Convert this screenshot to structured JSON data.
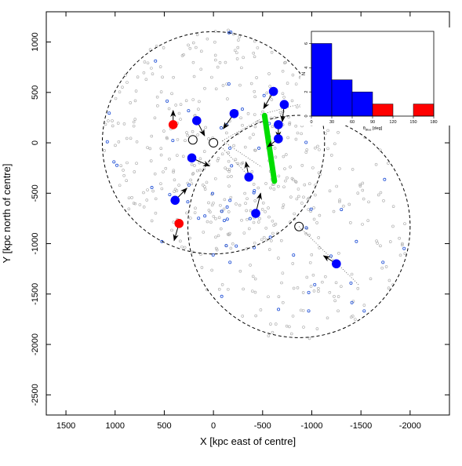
{
  "chart_data": [
    {
      "type": "scatter",
      "xlabel": "X [kpc east of centre]",
      "ylabel": "Y [kpc north of centre]",
      "xlim": [
        1700,
        -2400
      ],
      "ylim": [
        -2700,
        1300
      ],
      "xticks": [
        1500,
        1000,
        500,
        0,
        -500,
        -1000,
        -1500,
        -2000
      ],
      "yticks": [
        1000,
        500,
        0,
        -500,
        -1000,
        -1500,
        -2000,
        -2500
      ],
      "xtick_labels": [
        "1500",
        "1000",
        "500",
        "0",
        "-500",
        "-1000",
        "-1500",
        "-2000"
      ],
      "ytick_labels": [
        "1000",
        "500",
        "0",
        "-500",
        "-1000",
        "-1500",
        "-2000",
        "-2500"
      ],
      "grid": false,
      "circles": [
        {
          "cx": 0,
          "cy": 0,
          "r": 1130
        },
        {
          "cx": -870,
          "cy": -830,
          "r": 1130
        }
      ],
      "open_circles": [
        {
          "x": 0,
          "y": 0
        },
        {
          "x": 210,
          "y": 30
        },
        {
          "x": -870,
          "y": -830
        }
      ],
      "filled_points": [
        {
          "x": 410,
          "y": 180,
          "color": "#ff0000",
          "dx": 0,
          "dy": 140
        },
        {
          "x": 170,
          "y": 220,
          "color": "#0000ff",
          "dx": -80,
          "dy": -150
        },
        {
          "x": -210,
          "y": 290,
          "color": "#0000ff",
          "dx": 110,
          "dy": -150
        },
        {
          "x": -610,
          "y": 510,
          "color": "#0000ff",
          "dx": 100,
          "dy": -170
        },
        {
          "x": -720,
          "y": 380,
          "color": "#0000ff",
          "dx": 20,
          "dy": -170
        },
        {
          "x": -660,
          "y": 180,
          "color": "#0000ff",
          "dx": 0,
          "dy": -130
        },
        {
          "x": -660,
          "y": 40,
          "color": "#0000ff",
          "dx": 110,
          "dy": -80
        },
        {
          "x": 220,
          "y": -150,
          "color": "#0000ff",
          "dx": -180,
          "dy": -80
        },
        {
          "x": -360,
          "y": -340,
          "color": "#0000ff",
          "dx": 30,
          "dy": 150
        },
        {
          "x": 390,
          "y": -570,
          "color": "#0000ff",
          "dx": -120,
          "dy": 120
        },
        {
          "x": 350,
          "y": -800,
          "color": "#ff0000",
          "dx": 50,
          "dy": -170
        },
        {
          "x": -430,
          "y": -700,
          "color": "#0000ff",
          "dx": -50,
          "dy": 200
        },
        {
          "x": -1250,
          "y": -1200,
          "color": "#0000ff",
          "dx": 130,
          "dy": 80
        }
      ],
      "green_stream": {
        "x1": -520,
        "y1": 270,
        "x2": -620,
        "y2": -380,
        "color": "#00dd00"
      },
      "dotted_lines": [
        {
          "x1": -90,
          "y1": 20,
          "x2": -470,
          "y2": 230
        },
        {
          "x1": -90,
          "y1": 20,
          "x2": -490,
          "y2": -240
        },
        {
          "x1": -80,
          "y1": -40,
          "x2": -330,
          "y2": -300
        },
        {
          "x1": -870,
          "y1": -830,
          "x2": -1480,
          "y2": -1410
        },
        {
          "x1": -480,
          "y1": 280,
          "x2": -860,
          "y2": 380
        }
      ],
      "grey_sample_count": 520,
      "blue_sample_count": 62
    },
    {
      "type": "bar",
      "xlabel": "θ_Blue [deg]",
      "ylabel": "N",
      "xlim": [
        0,
        180
      ],
      "ylim": [
        0,
        7
      ],
      "xticks": [
        0,
        30,
        60,
        90,
        120,
        150,
        180
      ],
      "yticks": [
        0,
        2,
        4,
        6
      ],
      "xtick_labels": [
        "0",
        "30",
        "60",
        "90",
        "120",
        "150",
        "180"
      ],
      "ytick_labels": [
        "0",
        "2",
        "4",
        "6"
      ],
      "bins": [
        {
          "from": 0,
          "to": 30,
          "value": 6,
          "color": "#0000ff"
        },
        {
          "from": 30,
          "to": 60,
          "value": 3,
          "color": "#0000ff"
        },
        {
          "from": 60,
          "to": 90,
          "value": 2,
          "color": "#0000ff"
        },
        {
          "from": 90,
          "to": 120,
          "value": 1,
          "color": "#ff0000"
        },
        {
          "from": 120,
          "to": 150,
          "value": 0,
          "color": "#ff0000"
        },
        {
          "from": 150,
          "to": 180,
          "value": 1,
          "color": "#ff0000"
        }
      ]
    }
  ]
}
